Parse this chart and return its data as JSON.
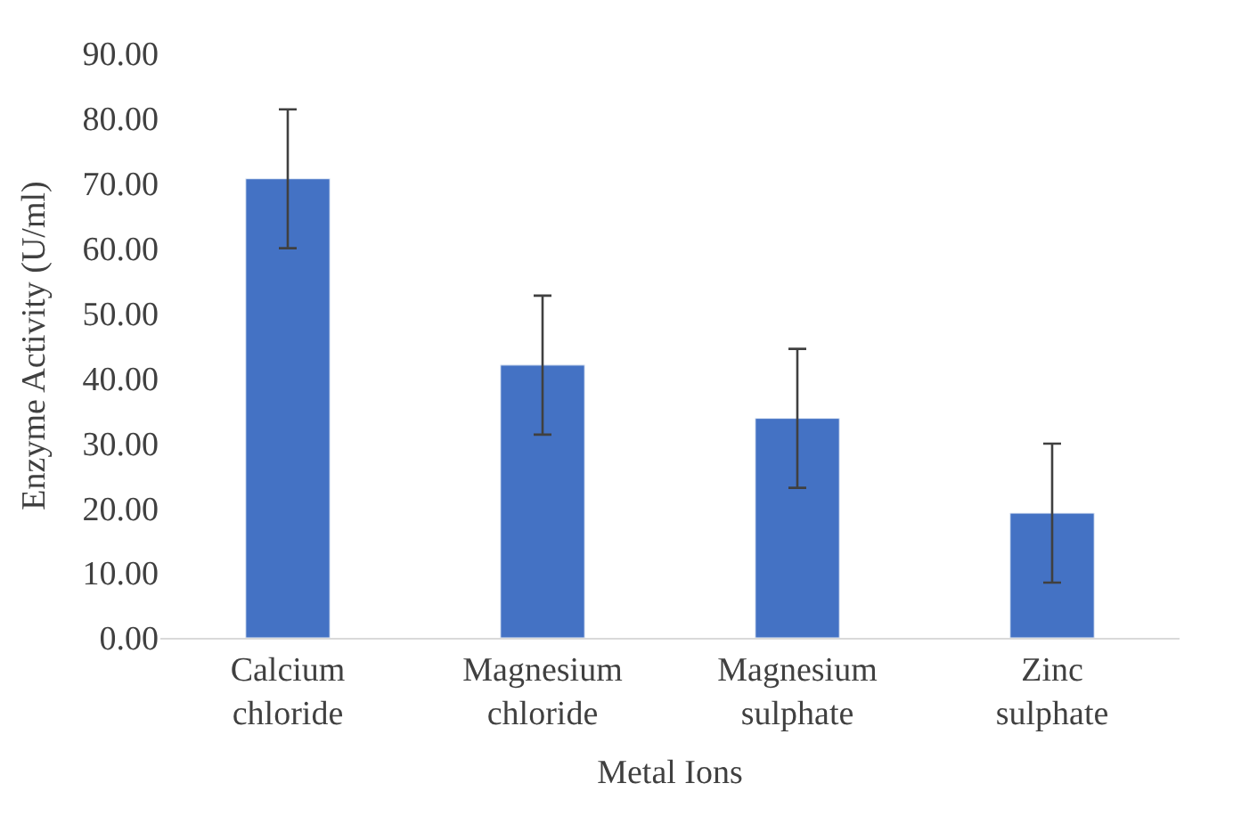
{
  "chart_data": {
    "type": "bar",
    "xlabel": "Metal Ions",
    "ylabel": "Enzyme Activity (U/ml)",
    "categories": [
      "Calcium chloride",
      "Magnesium chloride",
      "Magnesium sulphate",
      "Zinc sulphate"
    ],
    "values": [
      70.7,
      42.0,
      33.8,
      19.2
    ],
    "errors": [
      10.7,
      10.7,
      10.7,
      10.7
    ],
    "color": "#4472c4",
    "ylim": [
      0,
      90
    ],
    "yticks": [
      {
        "value": 0,
        "label": "0.00"
      },
      {
        "value": 10,
        "label": "10.00"
      },
      {
        "value": 20,
        "label": "20.00"
      },
      {
        "value": 30,
        "label": "30.00"
      },
      {
        "value": 40,
        "label": "40.00"
      },
      {
        "value": 50,
        "label": "50.00"
      },
      {
        "value": 60,
        "label": "60.00"
      },
      {
        "value": 70,
        "label": "70.00"
      },
      {
        "value": 80,
        "label": "80.00"
      },
      {
        "value": 90,
        "label": "90.00"
      }
    ],
    "grid": false
  }
}
